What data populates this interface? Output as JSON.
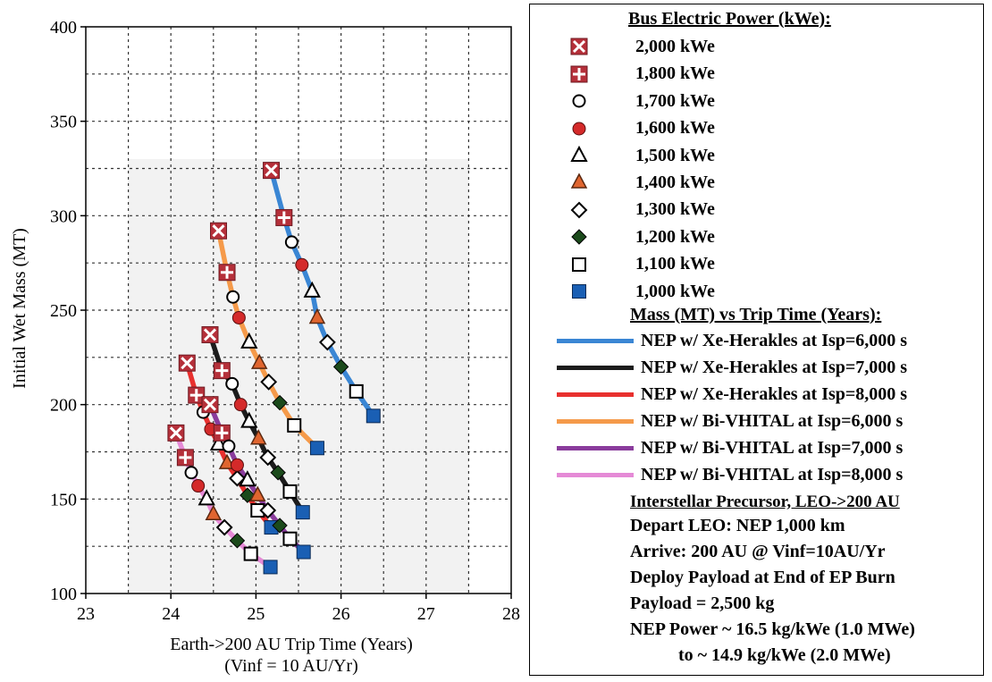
{
  "chart_data": {
    "type": "scatter",
    "xlabel": "Earth->200 AU Trip Time (Years)",
    "xlabel2": "(Vinf = 10 AU/Yr)",
    "ylabel": "Initial Wet Mass (MT)",
    "xlim": [
      23,
      28
    ],
    "ylim": [
      100,
      400
    ],
    "xticks": [
      23,
      24,
      25,
      26,
      27,
      28
    ],
    "yticks": [
      100,
      150,
      200,
      250,
      300,
      350,
      400
    ],
    "grid": true,
    "legend_position": "right",
    "marker_legend_title": "Bus Electric Power (kWe):",
    "powers": [
      {
        "label": "2,000 kWe",
        "kwe": 2000,
        "marker": "x-box"
      },
      {
        "label": "1,800 kWe",
        "kwe": 1800,
        "marker": "plus-box"
      },
      {
        "label": "1,700 kWe",
        "kwe": 1700,
        "marker": "open-circle"
      },
      {
        "label": "1,600 kWe",
        "kwe": 1600,
        "marker": "red-circle"
      },
      {
        "label": "1,500 kWe",
        "kwe": 1500,
        "marker": "open-triangle"
      },
      {
        "label": "1,400 kWe",
        "kwe": 1400,
        "marker": "orange-triangle"
      },
      {
        "label": "1,300 kWe",
        "kwe": 1300,
        "marker": "open-diamond"
      },
      {
        "label": "1,200 kWe",
        "kwe": 1200,
        "marker": "filled-diamond"
      },
      {
        "label": "1,100 kWe",
        "kwe": 1100,
        "marker": "open-square"
      },
      {
        "label": "1,000 kWe",
        "kwe": 1000,
        "marker": "filled-square"
      }
    ],
    "series_legend_title": "Mass (MT) vs Trip Time (Years):",
    "series": [
      {
        "name": "NEP w/ Xe-Herakles at Isp=6,000 s",
        "color": "#3a86d4",
        "x": [
          25.18,
          25.33,
          25.42,
          25.54,
          25.66,
          25.72,
          25.84,
          26.0,
          26.18,
          26.38
        ],
        "y": [
          324,
          299,
          286,
          274,
          260,
          246,
          233,
          220,
          207,
          194
        ]
      },
      {
        "name": "NEP w/ Xe-Herakles at Isp=7,000 s",
        "color": "#1c1c1c",
        "x": [
          24.46,
          24.6,
          24.72,
          24.82,
          24.92,
          25.03,
          25.14,
          25.26,
          25.4,
          25.55
        ],
        "y": [
          237,
          218,
          211,
          200,
          191,
          182,
          172,
          164,
          154,
          143
        ]
      },
      {
        "name": "NEP w/ Xe-Herakles at Isp=8,000 s",
        "color": "#e8302e",
        "x": [
          24.19,
          24.3,
          24.38,
          24.47,
          24.56,
          24.66,
          24.78,
          24.9,
          25.02,
          25.18
        ],
        "y": [
          222,
          205,
          196,
          187,
          179,
          169,
          161,
          152,
          144,
          135
        ]
      },
      {
        "name": "NEP w/ Bi-VHITAL at Isp=6,000 s",
        "color": "#f59a4a",
        "x": [
          24.56,
          24.66,
          24.73,
          24.8,
          24.92,
          25.04,
          25.15,
          25.28,
          25.45,
          25.72
        ],
        "y": [
          292,
          270,
          257,
          246,
          233,
          222,
          212,
          201,
          189,
          177
        ]
      },
      {
        "name": "NEP w/ Bi-VHITAL at Isp=7,000 s",
        "color": "#8a3c9c",
        "x": [
          24.46,
          24.6,
          24.68,
          24.78,
          24.9,
          25.02,
          25.14,
          25.28,
          25.4,
          25.56
        ],
        "y": [
          200,
          185,
          178,
          168,
          160,
          152,
          144,
          136,
          129,
          122
        ]
      },
      {
        "name": "NEP w/ Bi-VHITAL at Isp=8,000 s",
        "color": "#e58ad6",
        "x": [
          24.06,
          24.17,
          24.24,
          24.32,
          24.42,
          24.5,
          24.63,
          24.78,
          24.94,
          25.17
        ],
        "y": [
          185,
          172,
          164,
          157,
          150,
          142,
          135,
          128,
          121,
          114
        ]
      }
    ],
    "notes_title": "Interstellar Precursor, LEO->200 AU",
    "notes": [
      "Depart LEO: NEP 1,000 km",
      "Arrive: 200 AU @ Vinf=10AU/Yr",
      "Deploy Payload at End of EP Burn",
      "Payload = 2,500 kg",
      "NEP Power ~ 16.5 kg/kWe (1.0 MWe)",
      "to ~ 14.9 kg/kWe (2.0 MWe)"
    ]
  }
}
